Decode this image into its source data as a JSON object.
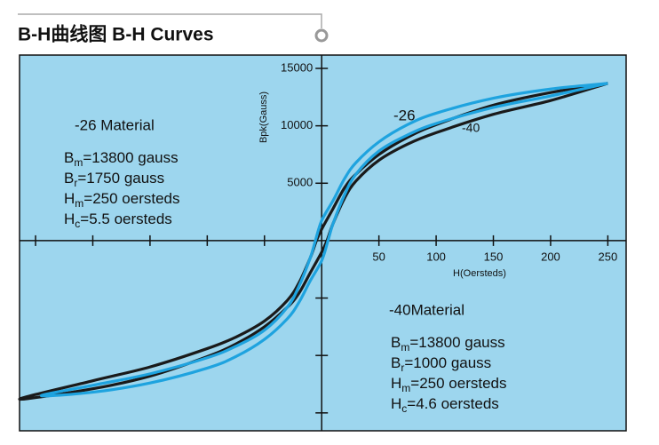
{
  "chart_data": {
    "type": "line",
    "title": "B-H曲线图 B-H Curves",
    "xlabel": "H(Oersteds)",
    "ylabel": "Bpk(Gauss)",
    "xlim": [
      -264,
      266
    ],
    "ylim": [
      -16560,
      16160
    ],
    "xticks": [
      50,
      100,
      150,
      200,
      250
    ],
    "xticks_unlabeled": [
      -250,
      -200,
      -150,
      -100,
      -50
    ],
    "yticks": [
      5000,
      10000,
      15000
    ],
    "yticks_unlabeled": [
      -5000,
      -10000,
      -15000
    ],
    "background": "#9dd6ee",
    "series": [
      {
        "name": "-40",
        "color": "#1a1a1a",
        "x": [
          250,
          200,
          150,
          100,
          75,
          50,
          30,
          20,
          10,
          0,
          -4.6,
          -10,
          -20,
          -30,
          -50,
          -75,
          -100,
          -150,
          -200,
          -264,
          -200,
          -150,
          -100,
          -75,
          -50,
          -30,
          -20,
          -10,
          0,
          4.6,
          10,
          20,
          30,
          50,
          75,
          100,
          150,
          200,
          250
        ],
        "values": [
          13700,
          12900,
          11800,
          10100,
          9000,
          7500,
          5800,
          4600,
          2800,
          1000,
          0,
          -1500,
          -3700,
          -5200,
          -7000,
          -8400,
          -9400,
          -11000,
          -12200,
          -13800,
          -12900,
          -11800,
          -10100,
          -9000,
          -7500,
          -5800,
          -4600,
          -2800,
          -1000,
          0,
          1500,
          3700,
          5200,
          7000,
          8400,
          9400,
          11000,
          12200,
          13700
        ]
      },
      {
        "name": "-26",
        "color": "#1ea3df",
        "x": [
          250,
          200,
          150,
          100,
          75,
          50,
          30,
          20,
          10,
          0,
          -5.5,
          -10,
          -20,
          -30,
          -50,
          -75,
          -100,
          -150,
          -200,
          -245,
          -200,
          -150,
          -100,
          -75,
          -50,
          -30,
          -20,
          -10,
          0,
          5.5,
          10,
          20,
          30,
          50,
          75,
          100,
          150,
          200,
          250
        ],
        "values": [
          13700,
          13200,
          12400,
          11100,
          10100,
          8600,
          6800,
          5400,
          3500,
          1750,
          0,
          -1500,
          -4000,
          -5800,
          -7800,
          -9200,
          -10200,
          -11600,
          -12600,
          -13500,
          -13200,
          -12400,
          -11100,
          -10100,
          -8600,
          -6800,
          -5400,
          -3500,
          -1750,
          0,
          1500,
          4000,
          5800,
          7800,
          9200,
          10200,
          11600,
          12600,
          13700
        ]
      }
    ],
    "materials": [
      {
        "title": "-26 Material",
        "props": [
          {
            "symbol": "B",
            "sub": "m",
            "text": "=13800 gauss"
          },
          {
            "symbol": "B",
            "sub": "r",
            "text": "=1750 gauss"
          },
          {
            "symbol": "H",
            "sub": "m",
            "text": "=250 oersteds"
          },
          {
            "symbol": "H",
            "sub": "c",
            "text": "=5.5 oersteds"
          }
        ]
      },
      {
        "title": "-40Material",
        "props": [
          {
            "symbol": "B",
            "sub": "m",
            "text": "=13800 gauss"
          },
          {
            "symbol": "B",
            "sub": "r",
            "text": "=1000 gauss"
          },
          {
            "symbol": "H",
            "sub": "m",
            "text": "=250 oersteds"
          },
          {
            "symbol": "H",
            "sub": "c",
            "text": "=4.6 oersteds"
          }
        ]
      }
    ]
  }
}
